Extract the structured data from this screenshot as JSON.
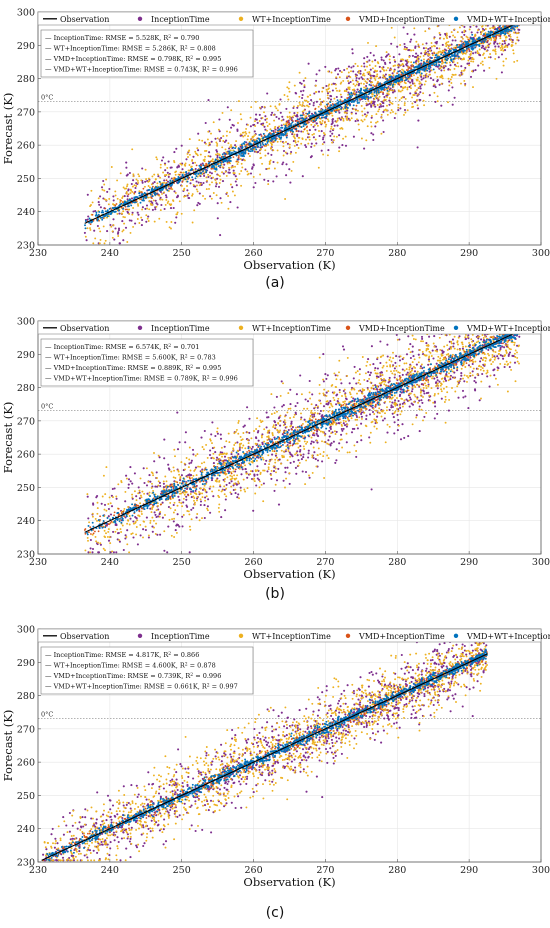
{
  "figure": {
    "legend_labels": [
      "Observation",
      "InceptionTime",
      "WT+InceptionTime",
      "VMD+InceptionTime",
      "VMD+WT+InceptionTime"
    ],
    "colors": {
      "Observation": "#000000",
      "InceptionTime": "#7e2f8e",
      "WT+InceptionTime": "#edb120",
      "VMD+InceptionTime": "#d95319",
      "VMD+WT+InceptionTime": "#0072bd"
    },
    "freezing_label": "0°C"
  },
  "chart_data": [
    {
      "type": "scatter",
      "panel_label": "(a)",
      "xlabel": "Observation (K)",
      "ylabel": "Forecast (K)",
      "xlim": [
        230,
        300
      ],
      "ylim": [
        230,
        300
      ],
      "xticks": [
        230,
        240,
        250,
        260,
        270,
        280,
        290,
        300
      ],
      "yticks": [
        230,
        240,
        250,
        260,
        270,
        280,
        290,
        300
      ],
      "freezing_line_y": 273.15,
      "grid": true,
      "legend_placement": "top",
      "obs_range": [
        236.5,
        297
      ],
      "metrics": [
        {
          "model": "InceptionTime",
          "rmse": "5.528K",
          "r2": "0.790"
        },
        {
          "model": "WT+InceptionTime",
          "rmse": "5.286K",
          "r2": "0.808"
        },
        {
          "model": "VMD+InceptionTime",
          "rmse": "0.798K",
          "r2": "0.995"
        },
        {
          "model": "VMD+WT+InceptionTime",
          "rmse": "0.743K",
          "r2": "0.996"
        }
      ],
      "series": [
        {
          "name": "Observation",
          "x": [
            236.5,
            297
          ],
          "y": [
            236.5,
            297
          ]
        },
        {
          "name": "InceptionTime",
          "spread_K": 6.5
        },
        {
          "name": "WT+InceptionTime",
          "spread_K": 6.0
        },
        {
          "name": "VMD+InceptionTime",
          "spread_K": 1.0
        },
        {
          "name": "VMD+WT+InceptionTime",
          "spread_K": 0.9
        }
      ]
    },
    {
      "type": "scatter",
      "panel_label": "(b)",
      "xlabel": "Observation (K)",
      "ylabel": "Forecast (K)",
      "xlim": [
        230,
        300
      ],
      "ylim": [
        230,
        300
      ],
      "xticks": [
        230,
        240,
        250,
        260,
        270,
        280,
        290,
        300
      ],
      "yticks": [
        230,
        240,
        250,
        260,
        270,
        280,
        290,
        300
      ],
      "freezing_line_y": 273.15,
      "grid": true,
      "legend_placement": "top",
      "obs_range": [
        236.5,
        297
      ],
      "metrics": [
        {
          "model": "InceptionTime",
          "rmse": "6.574K",
          "r2": "0.701"
        },
        {
          "model": "WT+InceptionTime",
          "rmse": "5.600K",
          "r2": "0.783"
        },
        {
          "model": "VMD+InceptionTime",
          "rmse": "0.889K",
          "r2": "0.995"
        },
        {
          "model": "VMD+WT+InceptionTime",
          "rmse": "0.789K",
          "r2": "0.996"
        }
      ],
      "series": [
        {
          "name": "Observation",
          "x": [
            236.5,
            297
          ],
          "y": [
            236.5,
            297
          ]
        },
        {
          "name": "InceptionTime",
          "spread_K": 7.5
        },
        {
          "name": "WT+InceptionTime",
          "spread_K": 6.3
        },
        {
          "name": "VMD+InceptionTime",
          "spread_K": 1.1
        },
        {
          "name": "VMD+WT+InceptionTime",
          "spread_K": 1.0
        }
      ]
    },
    {
      "type": "scatter",
      "panel_label": "(c)",
      "xlabel": "Observation (K)",
      "ylabel": "Forecast (K)",
      "xlim": [
        230,
        300
      ],
      "ylim": [
        230,
        300
      ],
      "xticks": [
        230,
        240,
        250,
        260,
        270,
        280,
        290,
        300
      ],
      "yticks": [
        230,
        240,
        250,
        260,
        270,
        280,
        290,
        300
      ],
      "freezing_line_y": 273.15,
      "grid": true,
      "legend_placement": "top",
      "obs_range": [
        230.5,
        292.5
      ],
      "metrics": [
        {
          "model": "InceptionTime",
          "rmse": "4.817K",
          "r2": "0.866"
        },
        {
          "model": "WT+InceptionTime",
          "rmse": "4.600K",
          "r2": "0.878"
        },
        {
          "model": "VMD+InceptionTime",
          "rmse": "0.739K",
          "r2": "0.996"
        },
        {
          "model": "VMD+WT+InceptionTime",
          "rmse": "0.661K",
          "r2": "0.997"
        }
      ],
      "series": [
        {
          "name": "Observation",
          "x": [
            230.5,
            292.5
          ],
          "y": [
            230.5,
            292.5
          ]
        },
        {
          "name": "InceptionTime",
          "spread_K": 5.6
        },
        {
          "name": "WT+InceptionTime",
          "spread_K": 5.3
        },
        {
          "name": "VMD+InceptionTime",
          "spread_K": 0.9
        },
        {
          "name": "VMD+WT+InceptionTime",
          "spread_K": 0.8
        }
      ]
    }
  ]
}
